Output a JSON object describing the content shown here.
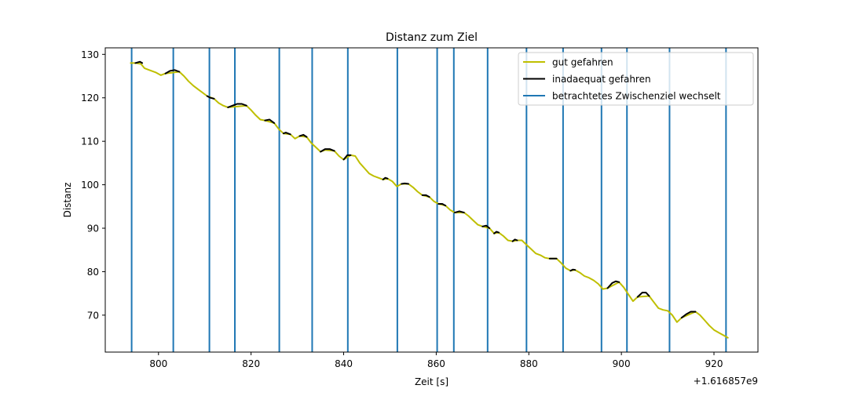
{
  "chart_data": {
    "type": "line",
    "title": "Distanz zum Ziel",
    "xlabel": "Zeit [s]",
    "ylabel": "Distanz",
    "x_offset_label": "+1.616857e9",
    "xlim": [
      788.5,
      929.5
    ],
    "ylim": [
      61.5,
      131.5
    ],
    "x_ticks": [
      800,
      820,
      840,
      860,
      880,
      900,
      920
    ],
    "y_ticks": [
      70,
      80,
      90,
      100,
      110,
      120,
      130
    ],
    "legend_position": "top-right",
    "legend": [
      {
        "label": "gut gefahren",
        "color": "#bfbf00"
      },
      {
        "label": "inadaequat gefahren",
        "color": "#000000"
      },
      {
        "label": "betrachtetes Zwischenziel wechselt",
        "color": "#1f77b4"
      }
    ],
    "series": [
      {
        "name": "gut gefahren",
        "color": "#bfbf00",
        "points": [
          [
            794.0,
            128.0
          ],
          [
            795.0,
            128.0
          ],
          [
            796.2,
            127.8
          ],
          [
            797.0,
            126.8
          ],
          [
            798.0,
            126.4
          ],
          [
            799.5,
            125.8
          ],
          [
            800.5,
            125.2
          ],
          [
            801.5,
            125.6
          ],
          [
            804.5,
            126.0
          ],
          [
            805.5,
            125.0
          ],
          [
            806.5,
            123.8
          ],
          [
            807.5,
            122.8
          ],
          [
            808.5,
            122.0
          ],
          [
            809.5,
            121.2
          ],
          [
            810.5,
            120.4
          ],
          [
            812.0,
            119.8
          ],
          [
            813.0,
            118.8
          ],
          [
            814.0,
            118.2
          ],
          [
            815.0,
            117.8
          ],
          [
            819.0,
            118.2
          ],
          [
            820.0,
            117.2
          ],
          [
            821.0,
            116.0
          ],
          [
            822.0,
            115.0
          ],
          [
            823.0,
            114.8
          ],
          [
            825.0,
            114.2
          ],
          [
            826.0,
            112.8
          ],
          [
            827.0,
            111.8
          ],
          [
            828.5,
            111.6
          ],
          [
            829.5,
            110.6
          ],
          [
            830.5,
            111.2
          ],
          [
            832.0,
            111.0
          ],
          [
            833.0,
            109.6
          ],
          [
            834.0,
            108.6
          ],
          [
            835.0,
            107.6
          ],
          [
            836.0,
            108.0
          ],
          [
            838.0,
            107.8
          ],
          [
            839.0,
            106.6
          ],
          [
            840.0,
            105.8
          ],
          [
            841.5,
            106.8
          ],
          [
            842.5,
            106.6
          ],
          [
            843.5,
            105.0
          ],
          [
            844.5,
            103.8
          ],
          [
            845.5,
            102.6
          ],
          [
            846.5,
            102.0
          ],
          [
            847.5,
            101.6
          ],
          [
            848.5,
            101.2
          ],
          [
            849.5,
            101.4
          ],
          [
            850.5,
            100.8
          ],
          [
            851.5,
            99.6
          ],
          [
            852.5,
            100.2
          ],
          [
            854.0,
            100.2
          ],
          [
            855.0,
            99.4
          ],
          [
            856.0,
            98.4
          ],
          [
            857.0,
            97.6
          ],
          [
            858.5,
            97.2
          ],
          [
            859.5,
            96.2
          ],
          [
            860.5,
            95.6
          ],
          [
            862.0,
            95.2
          ],
          [
            863.0,
            94.2
          ],
          [
            864.0,
            93.6
          ],
          [
            866.0,
            93.6
          ],
          [
            867.0,
            92.8
          ],
          [
            868.0,
            91.8
          ],
          [
            869.0,
            90.8
          ],
          [
            870.0,
            90.4
          ],
          [
            871.5,
            90.0
          ],
          [
            872.5,
            88.8
          ],
          [
            873.5,
            89.0
          ],
          [
            874.5,
            88.2
          ],
          [
            875.5,
            87.2
          ],
          [
            876.5,
            87.0
          ],
          [
            877.5,
            87.2
          ],
          [
            878.5,
            87.2
          ],
          [
            879.5,
            86.2
          ],
          [
            880.5,
            85.2
          ],
          [
            881.5,
            84.2
          ],
          [
            882.5,
            83.8
          ],
          [
            883.5,
            83.2
          ],
          [
            884.5,
            83.0
          ],
          [
            886.0,
            83.0
          ],
          [
            887.0,
            82.0
          ],
          [
            888.0,
            80.8
          ],
          [
            889.0,
            80.2
          ],
          [
            890.0,
            80.4
          ],
          [
            891.0,
            79.8
          ],
          [
            892.0,
            79.0
          ],
          [
            893.0,
            78.6
          ],
          [
            894.0,
            78.0
          ],
          [
            895.0,
            77.2
          ],
          [
            896.0,
            76.0
          ],
          [
            897.0,
            76.2
          ],
          [
            899.5,
            77.6
          ],
          [
            900.5,
            76.4
          ],
          [
            901.5,
            74.8
          ],
          [
            902.5,
            73.2
          ],
          [
            903.5,
            74.2
          ],
          [
            906.0,
            74.4
          ],
          [
            907.0,
            73.0
          ],
          [
            908.0,
            71.6
          ],
          [
            909.0,
            71.2
          ],
          [
            910.0,
            71.0
          ],
          [
            911.0,
            70.0
          ],
          [
            912.0,
            68.4
          ],
          [
            913.0,
            69.4
          ],
          [
            916.0,
            70.8
          ],
          [
            917.0,
            70.0
          ],
          [
            918.0,
            68.8
          ],
          [
            919.0,
            67.6
          ],
          [
            920.0,
            66.6
          ],
          [
            921.0,
            66.0
          ],
          [
            922.0,
            65.4
          ],
          [
            923.0,
            64.8
          ]
        ]
      },
      {
        "name": "inadaequat gefahren",
        "color": "#000000",
        "segments": [
          [
            [
              795.0,
              128.0
            ],
            [
              796.0,
              128.3
            ],
            [
              796.5,
              128.0
            ]
          ],
          [
            [
              801.5,
              125.6
            ],
            [
              802.5,
              126.2
            ],
            [
              803.5,
              126.4
            ],
            [
              804.5,
              126.0
            ]
          ],
          [
            [
              810.5,
              120.4
            ],
            [
              811.2,
              120.0
            ],
            [
              812.0,
              119.8
            ]
          ],
          [
            [
              815.0,
              117.8
            ],
            [
              816.0,
              118.2
            ],
            [
              817.0,
              118.6
            ],
            [
              818.0,
              118.6
            ],
            [
              819.0,
              118.2
            ]
          ],
          [
            [
              823.0,
              114.8
            ],
            [
              824.0,
              115.0
            ],
            [
              825.0,
              114.2
            ]
          ],
          [
            [
              827.0,
              111.8
            ],
            [
              827.5,
              112.0
            ],
            [
              828.5,
              111.6
            ]
          ],
          [
            [
              830.5,
              111.2
            ],
            [
              831.3,
              111.5
            ],
            [
              832.0,
              111.0
            ]
          ],
          [
            [
              835.0,
              107.6
            ],
            [
              836.0,
              108.2
            ],
            [
              837.0,
              108.2
            ],
            [
              838.0,
              107.8
            ]
          ],
          [
            [
              840.0,
              105.8
            ],
            [
              840.8,
              106.8
            ],
            [
              841.5,
              106.8
            ]
          ],
          [
            [
              848.5,
              101.2
            ],
            [
              849.0,
              101.6
            ],
            [
              849.5,
              101.4
            ]
          ],
          [
            [
              852.5,
              100.2
            ],
            [
              853.2,
              100.3
            ],
            [
              854.0,
              100.2
            ]
          ],
          [
            [
              857.0,
              97.6
            ],
            [
              857.8,
              97.6
            ],
            [
              858.5,
              97.2
            ]
          ],
          [
            [
              860.5,
              95.6
            ],
            [
              861.3,
              95.6
            ],
            [
              862.0,
              95.2
            ]
          ],
          [
            [
              864.0,
              93.6
            ],
            [
              865.0,
              93.9
            ],
            [
              866.0,
              93.6
            ]
          ],
          [
            [
              870.0,
              90.4
            ],
            [
              870.8,
              90.6
            ],
            [
              871.5,
              90.0
            ]
          ],
          [
            [
              872.5,
              88.8
            ],
            [
              873.0,
              89.2
            ],
            [
              873.5,
              89.0
            ]
          ],
          [
            [
              876.5,
              87.0
            ],
            [
              877.0,
              87.4
            ],
            [
              877.5,
              87.2
            ]
          ],
          [
            [
              884.5,
              83.0
            ],
            [
              885.3,
              83.0
            ],
            [
              886.0,
              83.0
            ]
          ],
          [
            [
              889.0,
              80.2
            ],
            [
              889.5,
              80.5
            ],
            [
              890.0,
              80.4
            ]
          ],
          [
            [
              897.0,
              76.2
            ],
            [
              898.0,
              77.4
            ],
            [
              898.8,
              77.8
            ],
            [
              899.5,
              77.6
            ]
          ],
          [
            [
              903.5,
              74.2
            ],
            [
              904.5,
              75.2
            ],
            [
              905.3,
              75.2
            ],
            [
              906.0,
              74.4
            ]
          ],
          [
            [
              913.0,
              69.4
            ],
            [
              914.0,
              70.2
            ],
            [
              915.0,
              70.8
            ],
            [
              916.0,
              70.8
            ]
          ]
        ]
      },
      {
        "name": "betrachtetes Zwischenziel wechselt",
        "color": "#1f77b4",
        "vlines": [
          794.2,
          803.2,
          811.0,
          816.5,
          826.1,
          833.2,
          840.9,
          851.6,
          860.2,
          863.8,
          871.1,
          879.5,
          887.4,
          895.7,
          901.2,
          910.4,
          922.6
        ]
      }
    ]
  }
}
